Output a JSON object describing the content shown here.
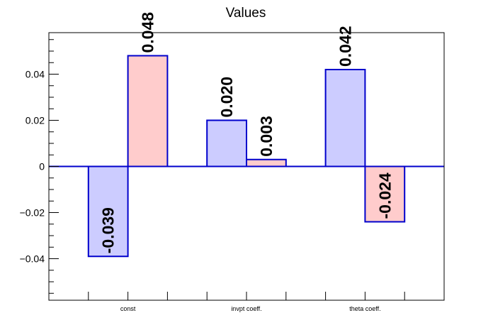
{
  "chart_data": {
    "type": "bar",
    "title": "Values",
    "categories": [
      "const",
      "invpt coeff.",
      "theta coeff."
    ],
    "series": [
      {
        "values": [
          -0.039,
          0.02,
          0.042
        ],
        "labels": [
          "-0.039",
          "0.020",
          "0.042"
        ],
        "color": "#ccccff",
        "edge_color": "#0000cc"
      },
      {
        "values": [
          0.048,
          0.003,
          -0.024
        ],
        "labels": [
          "0.048",
          "0.003",
          "-0.024"
        ],
        "color": "#ffcccc",
        "edge_color": "#0000cc"
      }
    ],
    "yticks": [
      {
        "value": 0.04,
        "label": "0.04"
      },
      {
        "value": 0.02,
        "label": "0.02"
      },
      {
        "value": 0,
        "label": "0"
      },
      {
        "value": -0.02,
        "label": "−0.02"
      },
      {
        "value": -0.04,
        "label": "−0.04"
      }
    ],
    "ylim": [
      -0.058,
      0.058
    ],
    "xlabel": "",
    "ylabel": "",
    "grid": false,
    "legend": "none"
  }
}
